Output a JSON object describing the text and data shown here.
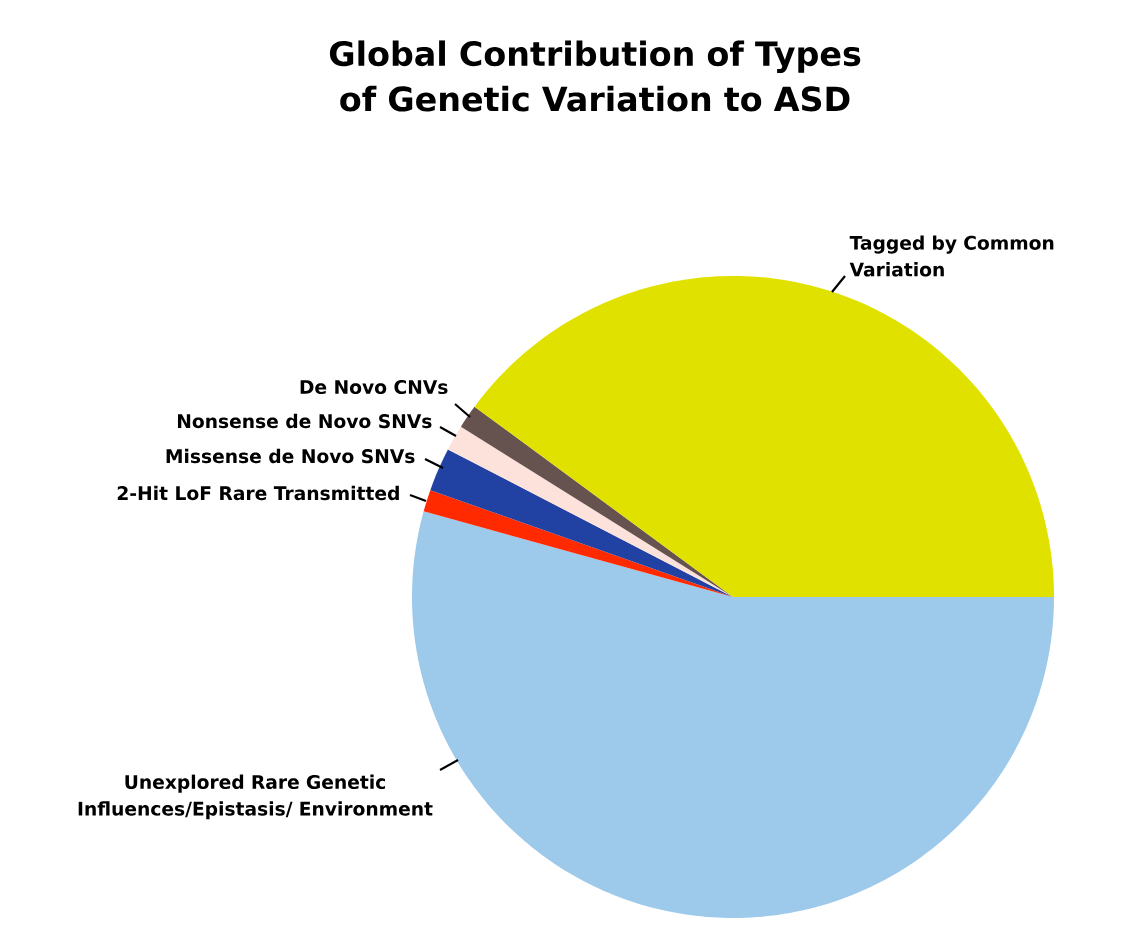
{
  "chart_data": {
    "type": "pie",
    "title": "Global Contribution of Types of Genetic Variation  to ASD",
    "categories": [
      "Unexplored Rare Genetic Influences/Epistasis/ Environment",
      "2-Hit LoF Rare Transmitted",
      "Missense de Novo SNVs",
      "Nonsense de Novo SNVs",
      "De Novo CNVs",
      "Tagged by Common Variation"
    ],
    "values": [
      54.3,
      1.1,
      2.2,
      1.3,
      1.2,
      39.9
    ],
    "colors": [
      "#9dc9ea",
      "#ff2a00",
      "#2141a3",
      "#fde2dc",
      "#66524f",
      "#e1e100"
    ]
  }
}
